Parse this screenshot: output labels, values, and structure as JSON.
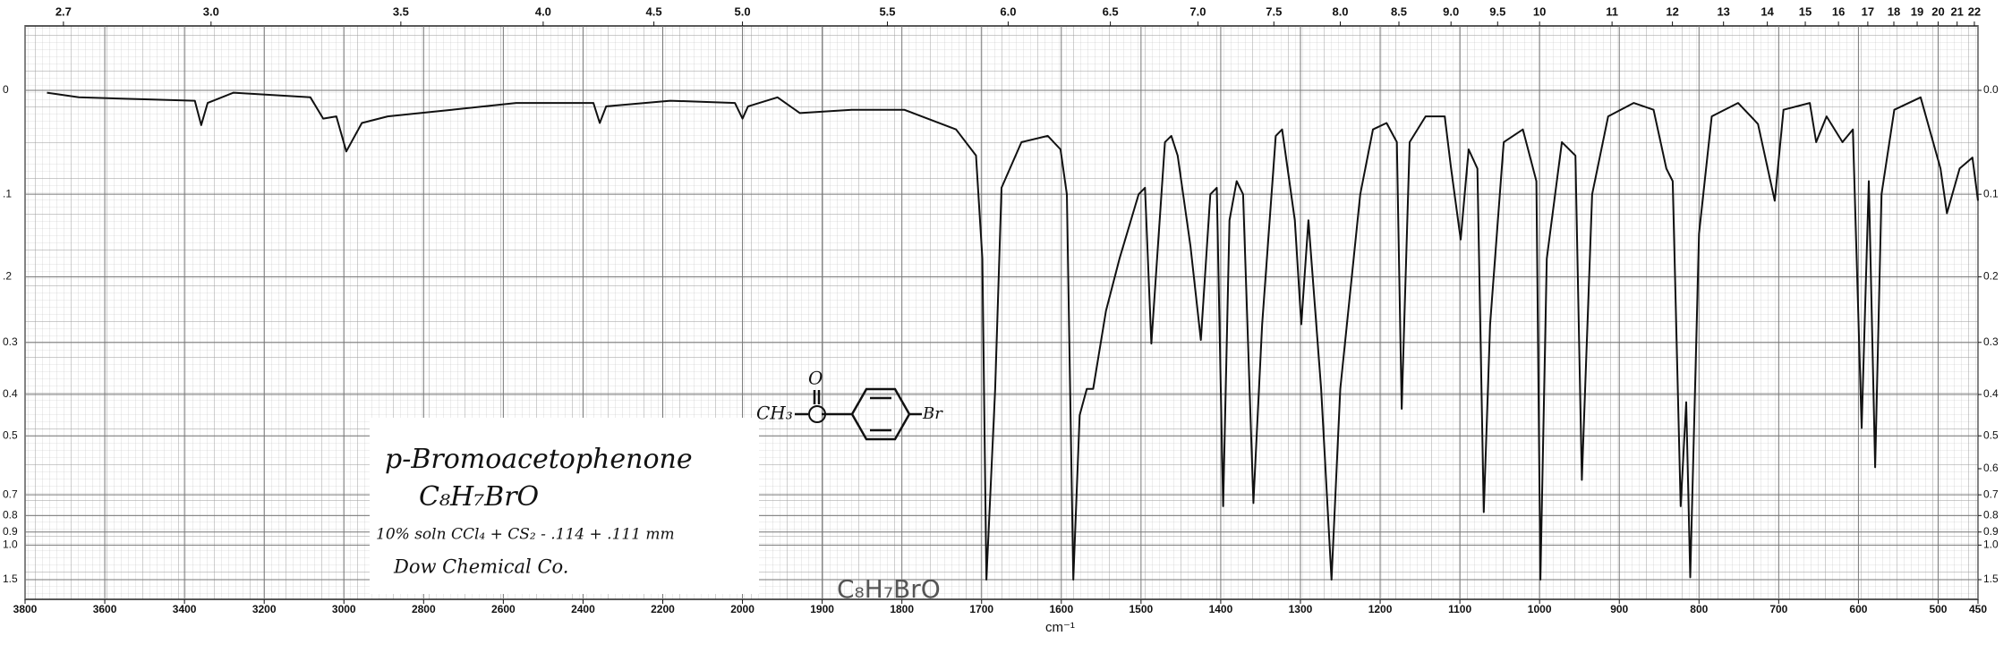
{
  "chart_data": {
    "type": "line",
    "color": "#111111",
    "x_label": "cm⁻¹",
    "xlim": [
      3800,
      450
    ],
    "xscale": {
      "break": 2000,
      "factor": 2
    },
    "xticks": [
      3800,
      3600,
      3400,
      3200,
      3000,
      2800,
      2600,
      2400,
      2200,
      2000,
      1900,
      1800,
      1700,
      1600,
      1500,
      1400,
      1300,
      1200,
      1100,
      1000,
      900,
      800,
      700,
      600,
      500,
      450
    ],
    "x2_conversion": 10000,
    "x2ticks": [
      2.7,
      {
        "value": 3,
        "label": "3.0"
      },
      3.5,
      {
        "value": 4,
        "label": "4.0"
      },
      4.5,
      {
        "value": 5,
        "label": "5.0"
      },
      5.5,
      {
        "value": 6,
        "label": "6.0"
      },
      6.5,
      {
        "value": 7,
        "label": "7.0"
      },
      7.5,
      {
        "value": 8,
        "label": "8.0"
      },
      8.5,
      {
        "value": 9,
        "label": "9.0"
      },
      9.5,
      10,
      11,
      12,
      13,
      14,
      15,
      16,
      17,
      18,
      19,
      20,
      21,
      22
    ],
    "yscale": "absorbance",
    "ylim": [
      0,
      1.5
    ],
    "yticks": [
      0,
      {
        "value": 0.1,
        "label": ".1"
      },
      {
        "value": 0.2,
        "label": ".2"
      },
      0.3,
      0.4,
      0.5,
      0.7,
      0.8,
      0.9,
      {
        "value": 1,
        "label": "1.0"
      },
      1.5
    ],
    "y2lim": [
      0,
      1.5
    ],
    "y2ticks": [
      {
        "value": 0,
        "label": "0.0"
      },
      0.1,
      0.2,
      0.3,
      0.4,
      0.5,
      0.6,
      0.7,
      0.8,
      0.9,
      {
        "value": 1,
        "label": "1.0"
      },
      1.5
    ],
    "grid": true,
    "x": [
      3745,
      3665,
      3374,
      3358,
      3342,
      3277,
      3084,
      3052,
      3019,
      2994,
      2955,
      2890,
      2729,
      2568,
      2374,
      2358,
      2342,
      2181,
      2019,
      2000,
      1993,
      1956,
      1928,
      1863,
      1797,
      1732,
      1707,
      1699,
      1694,
      1683,
      1675,
      1650,
      1617,
      1601,
      1593,
      1585,
      1577,
      1568,
      1560,
      1544,
      1527,
      1503,
      1495,
      1487,
      1470,
      1462,
      1454,
      1438,
      1425,
      1413,
      1405,
      1397,
      1389,
      1380,
      1372,
      1359,
      1348,
      1331,
      1323,
      1307,
      1299,
      1290,
      1274,
      1261,
      1250,
      1225,
      1209,
      1192,
      1179,
      1173,
      1163,
      1143,
      1119,
      1111,
      1099,
      1089,
      1078,
      1070,
      1062,
      1045,
      1021,
      1004,
      999,
      991,
      972,
      955,
      947,
      934,
      914,
      882,
      857,
      841,
      833,
      823,
      816,
      811,
      800,
      784,
      751,
      735,
      726,
      705,
      694,
      661,
      653,
      640,
      620,
      607,
      596,
      587,
      579,
      571,
      555,
      522,
      497,
      489,
      473,
      457,
      450
    ],
    "values": [
      0.002,
      0.006,
      0.009,
      0.031,
      0.011,
      0.002,
      0.006,
      0.025,
      0.023,
      0.056,
      0.029,
      0.023,
      0.017,
      0.011,
      0.011,
      0.029,
      0.014,
      0.009,
      0.011,
      0.025,
      0.014,
      0.006,
      0.02,
      0.017,
      0.017,
      0.035,
      0.06,
      0.176,
      1.5,
      0.388,
      0.093,
      0.047,
      0.041,
      0.054,
      0.1,
      1.5,
      0.447,
      0.388,
      0.388,
      0.249,
      0.176,
      0.1,
      0.093,
      0.302,
      0.047,
      0.041,
      0.06,
      0.16,
      0.296,
      0.1,
      0.093,
      0.752,
      0.129,
      0.086,
      0.1,
      0.737,
      0.27,
      0.041,
      0.035,
      0.129,
      0.27,
      0.129,
      0.388,
      1.5,
      0.388,
      0.1,
      0.035,
      0.029,
      0.047,
      0.432,
      0.047,
      0.023,
      0.023,
      0.073,
      0.152,
      0.054,
      0.073,
      0.782,
      0.27,
      0.047,
      0.035,
      0.086,
      1.5,
      0.176,
      0.047,
      0.06,
      0.64,
      0.1,
      0.023,
      0.011,
      0.017,
      0.073,
      0.086,
      0.752,
      0.417,
      1.44,
      0.145,
      0.023,
      0.011,
      0.023,
      0.03,
      0.107,
      0.017,
      0.011,
      0.047,
      0.023,
      0.047,
      0.035,
      0.479,
      0.086,
      0.595,
      0.1,
      0.017,
      0.006,
      0.073,
      0.121,
      0.073,
      0.062,
      0.107
    ],
    "annotations": {
      "name": "p-Bromoacetophenone",
      "formula": "C₈H₇BrO",
      "conditions": "10% soln CCl₄ + CS₂ - .114 + .111 mm",
      "source": "Dow Chemical Co.",
      "formula_handwritten": "C₈H₇BrO",
      "structure_methyl": "CH₃",
      "structure_oxygen": "O",
      "structure_bromine": "Br"
    }
  }
}
